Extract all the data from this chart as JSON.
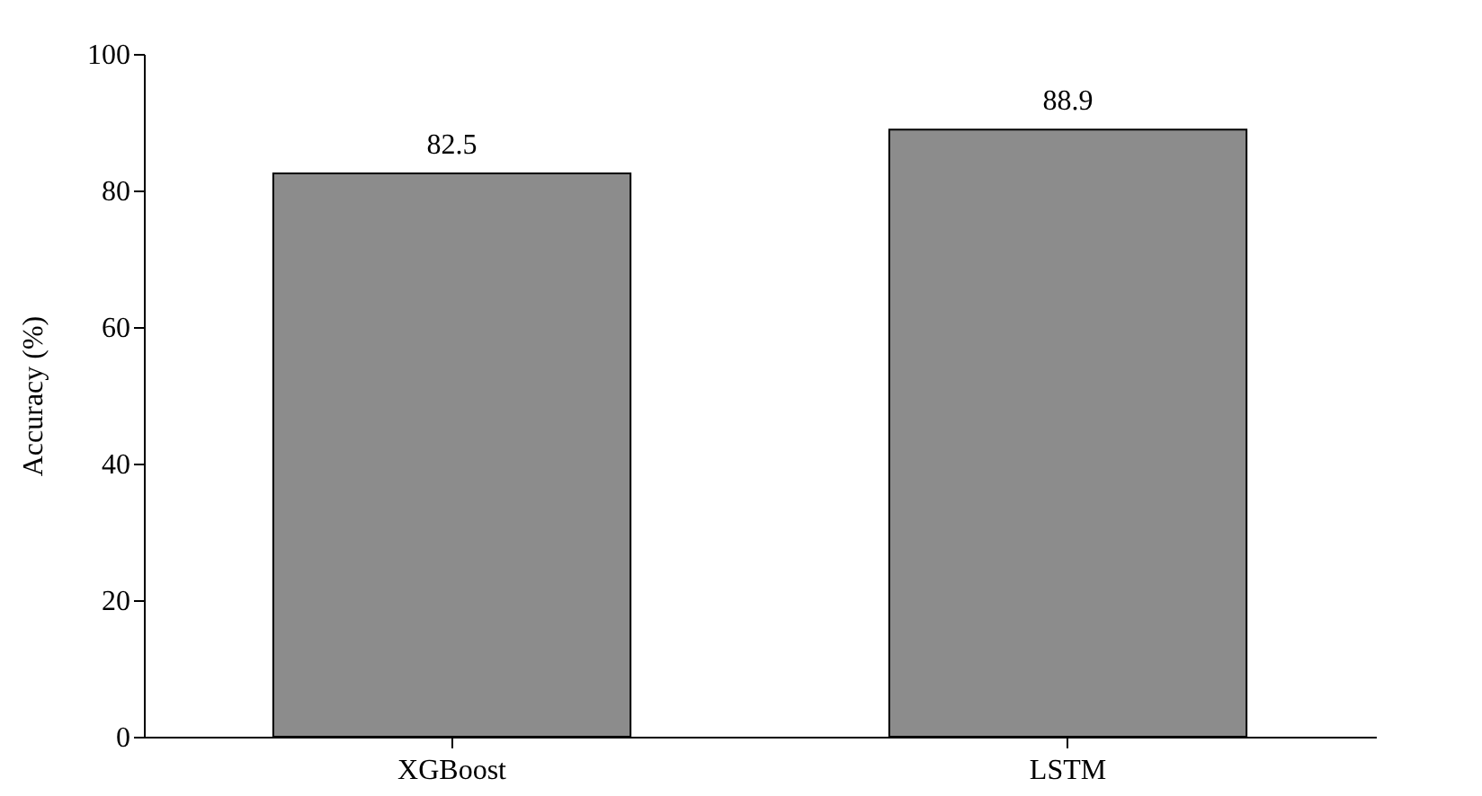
{
  "chart_data": {
    "type": "bar",
    "ylabel": "Accuracy (%)",
    "categories": [
      "XGBoost",
      "LSTM"
    ],
    "values": [
      82.5,
      88.9
    ],
    "color": "#8c8c8c",
    "ylim": [
      0,
      100
    ],
    "yticks": [
      0,
      20,
      40,
      60,
      80,
      100
    ],
    "data_labels": true
  }
}
